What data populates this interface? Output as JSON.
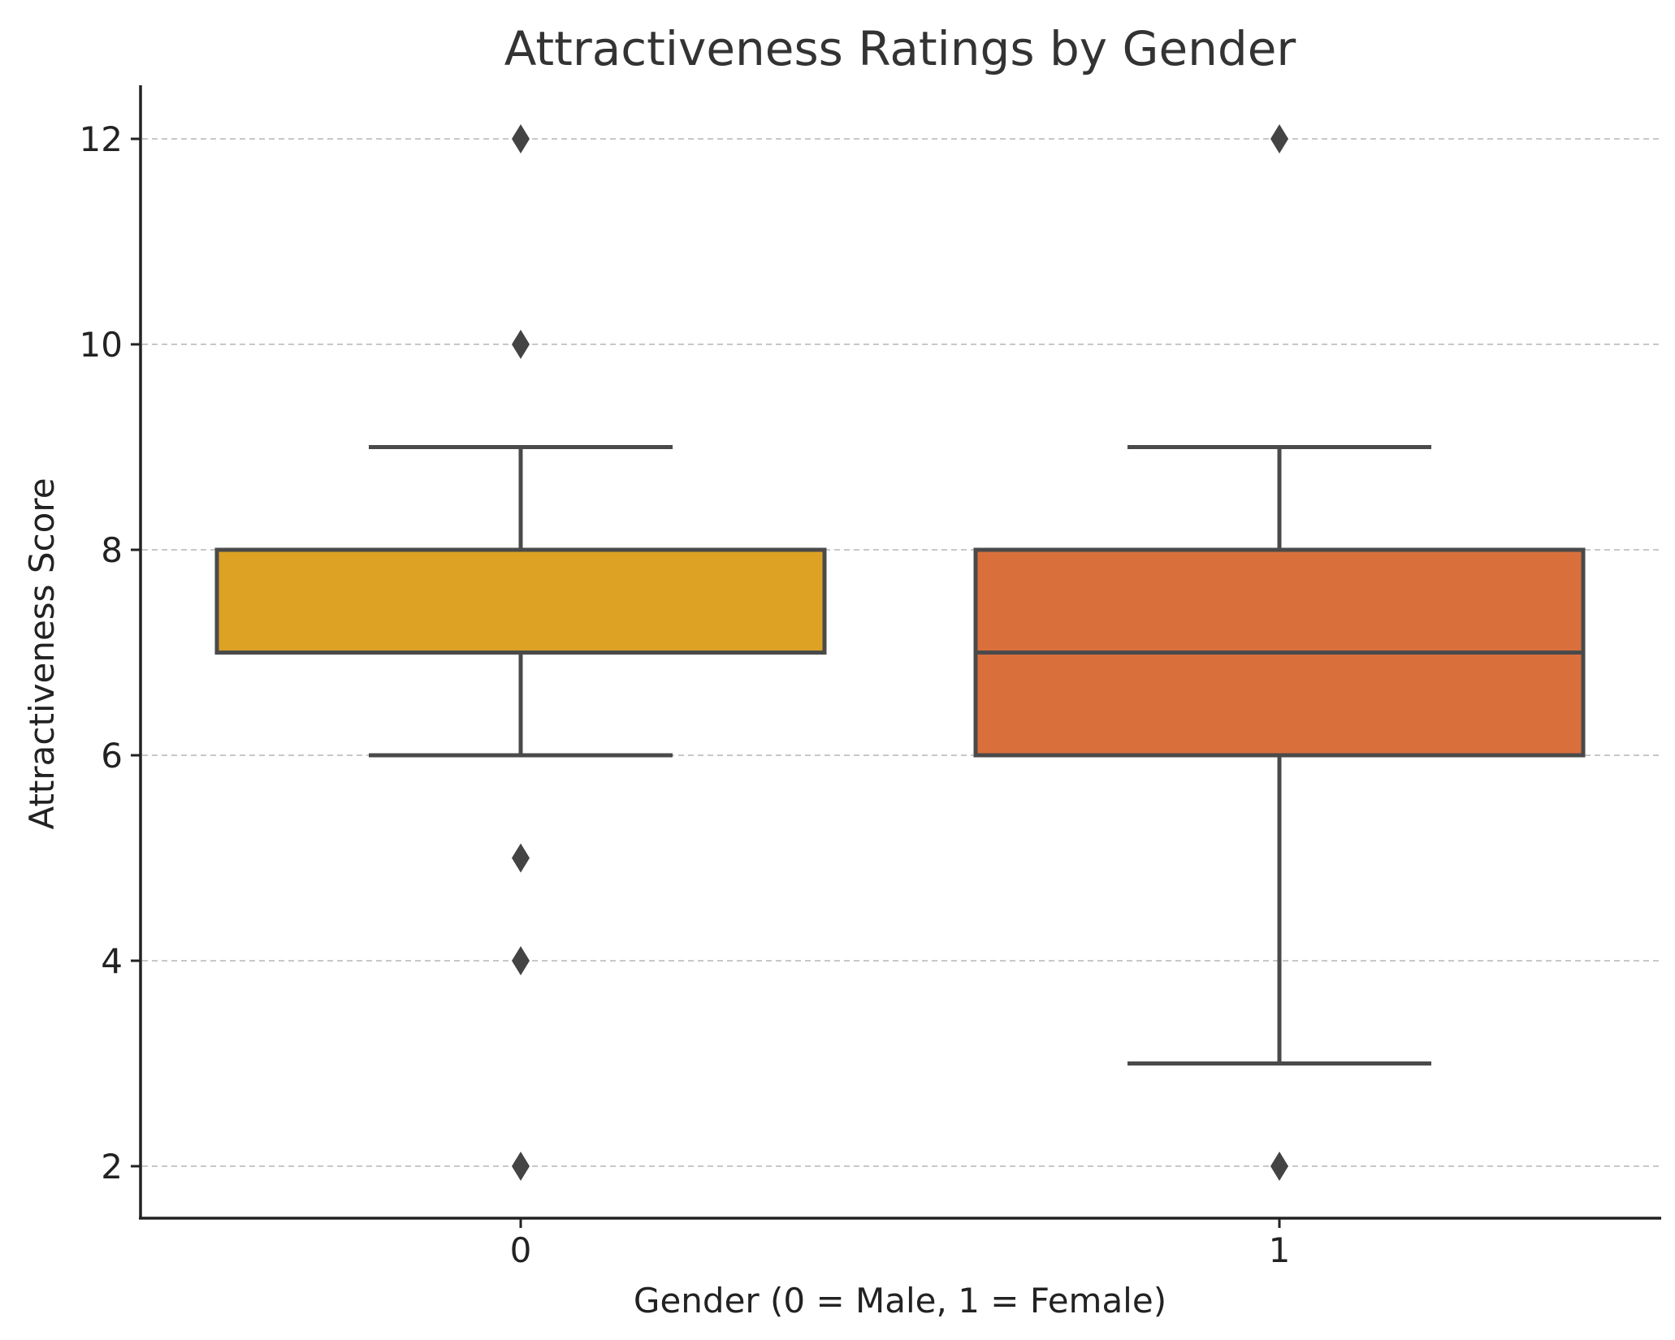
{
  "chart_data": {
    "type": "box",
    "title": "Attractiveness Ratings by Gender",
    "xlabel": "Gender (0 = Male, 1 = Female)",
    "ylabel": "Attractiveness Score",
    "categories": [
      "0",
      "1"
    ],
    "ylim": [
      1.5,
      12.5
    ],
    "yticks": [
      2,
      4,
      6,
      8,
      10,
      12
    ],
    "grid": "horizontal-dashed",
    "boxes": [
      {
        "category": "0",
        "q1": 7,
        "median": 7,
        "q3": 8,
        "whisker_low": 6,
        "whisker_high": 9,
        "outliers": [
          12,
          10,
          5,
          4,
          2
        ],
        "color": "#DDA224"
      },
      {
        "category": "1",
        "q1": 6,
        "median": 7,
        "q3": 8,
        "whisker_low": 3,
        "whisker_high": 9,
        "outliers": [
          12,
          2
        ],
        "color": "#D9703C"
      }
    ]
  }
}
